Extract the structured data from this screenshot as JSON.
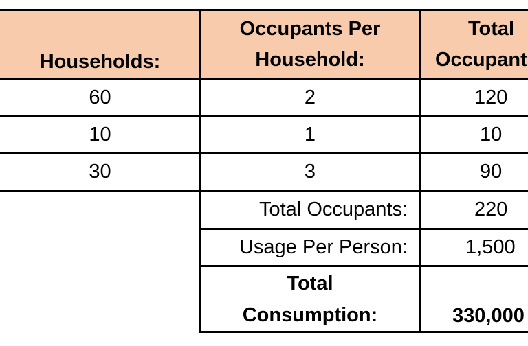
{
  "table": {
    "headers": {
      "households_label": "Households:",
      "occupants_per_household_line1": "Occupants Per",
      "occupants_per_household_line2": "Household:",
      "total_occupants_line1": "Total",
      "total_occupants_line2": "Occupants"
    },
    "rows": [
      {
        "households": "60",
        "occupants_per_household": "2",
        "total_occupants": "120"
      },
      {
        "households": "10",
        "occupants_per_household": "1",
        "total_occupants": "10"
      },
      {
        "households": "30",
        "occupants_per_household": "3",
        "total_occupants": "90"
      }
    ],
    "summary": {
      "total_occupants_label": "Total Occupants:",
      "total_occupants_value": "220",
      "usage_per_person_label": "Usage Per Person:",
      "usage_per_person_value": "1,500",
      "total_consumption_label_line1": "Total",
      "total_consumption_label_line2": "Consumption:",
      "total_consumption_value": "330,000"
    }
  },
  "colors": {
    "header_fill": "#f8cbad",
    "grid_line": "#000000",
    "background": "#ffffff"
  }
}
